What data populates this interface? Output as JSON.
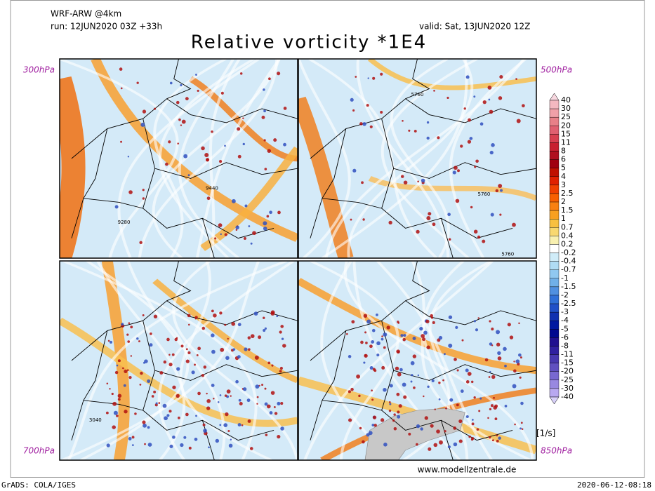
{
  "header": {
    "model": "WRF-ARW @4km",
    "run": "run: 12JUN2020 03Z +33h",
    "valid": "valid: Sat, 13JUN2020 12Z",
    "title": "Relative vorticity *1E4"
  },
  "panels": [
    {
      "level": "300hPa",
      "contour_labels": [
        "9440",
        "9280"
      ]
    },
    {
      "level": "500hPa",
      "contour_labels": [
        "5760",
        "5760",
        "5760"
      ]
    },
    {
      "level": "700hPa",
      "contour_labels": [
        "3040"
      ]
    },
    {
      "level": "850hPa"
    }
  ],
  "legend": {
    "unit": "[1/s]",
    "labels": [
      "40",
      "30",
      "25",
      "20",
      "15",
      "11",
      "8",
      "6",
      "5",
      "4",
      "3",
      "2.5",
      "2",
      "1.5",
      "1",
      "0.7",
      "0.4",
      "0.2",
      "-0.2",
      "-0.4",
      "-0.7",
      "-1",
      "-1.5",
      "-2",
      "-2.5",
      "-3",
      "-4",
      "-5",
      "-6",
      "-8",
      "-11",
      "-15",
      "-20",
      "-25",
      "-30",
      "-40"
    ],
    "colors": [
      "#f8d8e0",
      "#f4b8c0",
      "#f0a0a8",
      "#e88088",
      "#e06070",
      "#d84050",
      "#c82030",
      "#b01020",
      "#a00010",
      "#c01000",
      "#e02000",
      "#f04000",
      "#f86000",
      "#f88010",
      "#f8a020",
      "#f8c040",
      "#f8d870",
      "#f8f0b0",
      "#ffffff",
      "#d0ecf8",
      "#b0dcf4",
      "#90c8f0",
      "#70b0e8",
      "#5090e0",
      "#3070d8",
      "#2050c8",
      "#1030b0",
      "#0018a0",
      "#000890",
      "#201090",
      "#3020a0",
      "#4838b0",
      "#6050c0",
      "#7868d0",
      "#9888e0",
      "#b8a8f0",
      "#d8d0f8"
    ]
  },
  "footer": {
    "website": "www.modellzentrale.de",
    "left": "GrADS: COLA/IGES",
    "right": "2020-06-12-08:18"
  }
}
